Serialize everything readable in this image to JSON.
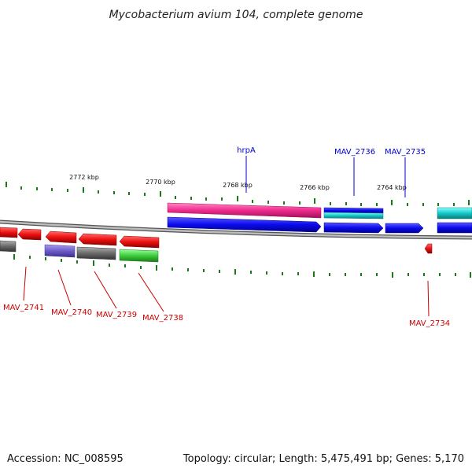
{
  "title": "Mycobacterium avium 104, complete genome",
  "scale_labels": [
    "2772 kbp",
    "2770 kbp",
    "2768 kbp",
    "2766 kbp",
    "2764 kbp"
  ],
  "gene_labels": {
    "hrpA": "hrpA",
    "MAV_2736": "MAV_2736",
    "MAV_2735": "MAV_2735",
    "MAV_2741": "MAV_2741",
    "MAV_2740": "MAV_2740",
    "MAV_2739": "MAV_2739",
    "MAV_2738": "MAV_2738",
    "MAV_2734": "MAV_2734"
  },
  "footer": {
    "accession": "Accession: NC_008595",
    "summary": "Topology: circular; Length: 5,475,491 bp; Genes: 5,170"
  },
  "colors": {
    "backbone": "#8c8c8c",
    "tick": "#1a7a1a",
    "gene_red": "#ee1111",
    "gene_blue": "#0a0aee",
    "gene_pink": "#ee2a8c",
    "gene_cyan": "#16c8c8",
    "gene_purple": "#6e5cc8",
    "gene_grey": "#6a6a6a",
    "gene_green": "#3ccc3c",
    "label_blue": "#0000cc",
    "label_red": "#cc0000"
  }
}
